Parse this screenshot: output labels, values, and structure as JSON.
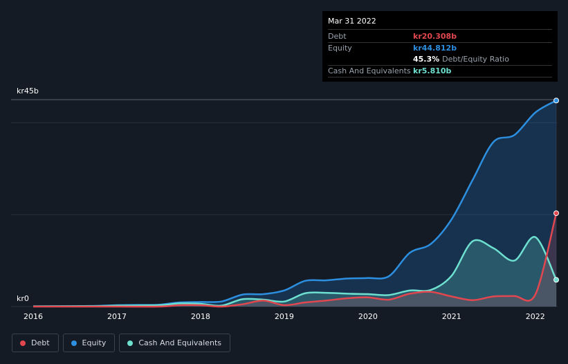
{
  "tooltip": {
    "date": "Mar 31 2022",
    "debt_label": "Debt",
    "debt_value": "kr20.308b",
    "equity_label": "Equity",
    "equity_value": "kr44.812b",
    "ratio_value": "45.3%",
    "ratio_label": "Debt/Equity Ratio",
    "cash_label": "Cash And Equivalents",
    "cash_value": "kr5.810b"
  },
  "legend": [
    {
      "label": "Debt",
      "color": "#e2474f"
    },
    {
      "label": "Equity",
      "color": "#2d8fe0"
    },
    {
      "label": "Cash And Equivalents",
      "color": "#6ee0d0"
    }
  ],
  "chart_data": {
    "type": "area",
    "title": "",
    "xlabel": "",
    "ylabel": "",
    "y_top_label": "kr45b",
    "y_bottom_label": "kr0",
    "ylim": [
      0,
      45
    ],
    "xlim": [
      2016.0,
      2022.25
    ],
    "x_ticks": [
      "2016",
      "2017",
      "2018",
      "2019",
      "2020",
      "2021",
      "2022"
    ],
    "series": [
      {
        "name": "Equity",
        "color": "#2d8fe0",
        "points": [
          [
            2016.0,
            0.05
          ],
          [
            2016.5,
            0.1
          ],
          [
            2016.75,
            0.15
          ],
          [
            2017.0,
            0.3
          ],
          [
            2017.25,
            0.35
          ],
          [
            2017.5,
            0.4
          ],
          [
            2017.75,
            0.9
          ],
          [
            2018.0,
            1.0
          ],
          [
            2018.25,
            1.1
          ],
          [
            2018.5,
            2.6
          ],
          [
            2018.75,
            2.7
          ],
          [
            2019.0,
            3.5
          ],
          [
            2019.25,
            5.6
          ],
          [
            2019.5,
            5.7
          ],
          [
            2019.75,
            6.1
          ],
          [
            2020.0,
            6.2
          ],
          [
            2020.25,
            6.6
          ],
          [
            2020.5,
            11.7
          ],
          [
            2020.75,
            13.6
          ],
          [
            2021.0,
            19.0
          ],
          [
            2021.25,
            27.5
          ],
          [
            2021.5,
            35.8
          ],
          [
            2021.75,
            37.3
          ],
          [
            2022.0,
            42.2
          ],
          [
            2022.25,
            44.812
          ]
        ]
      },
      {
        "name": "Debt",
        "color": "#e2474f",
        "points": [
          [
            2016.0,
            0.0
          ],
          [
            2017.0,
            0.0
          ],
          [
            2017.5,
            0.0
          ],
          [
            2017.75,
            0.3
          ],
          [
            2018.0,
            0.3
          ],
          [
            2018.25,
            0.0
          ],
          [
            2018.5,
            0.5
          ],
          [
            2018.75,
            1.3
          ],
          [
            2019.0,
            0.3
          ],
          [
            2019.25,
            0.9
          ],
          [
            2019.5,
            1.3
          ],
          [
            2019.75,
            1.8
          ],
          [
            2020.0,
            2.0
          ],
          [
            2020.25,
            1.5
          ],
          [
            2020.5,
            2.8
          ],
          [
            2020.75,
            3.2
          ],
          [
            2021.0,
            2.2
          ],
          [
            2021.25,
            1.4
          ],
          [
            2021.5,
            2.2
          ],
          [
            2021.75,
            2.3
          ],
          [
            2022.0,
            2.6
          ],
          [
            2022.25,
            20.308
          ]
        ]
      },
      {
        "name": "Cash And Equivalents",
        "color": "#6ee0d0",
        "points": [
          [
            2016.0,
            0.05
          ],
          [
            2016.75,
            0.1
          ],
          [
            2017.0,
            0.2
          ],
          [
            2017.5,
            0.3
          ],
          [
            2017.75,
            0.7
          ],
          [
            2018.0,
            0.6
          ],
          [
            2018.25,
            0.2
          ],
          [
            2018.5,
            1.6
          ],
          [
            2018.75,
            1.5
          ],
          [
            2019.0,
            1.1
          ],
          [
            2019.25,
            2.9
          ],
          [
            2019.5,
            3.0
          ],
          [
            2019.75,
            2.8
          ],
          [
            2020.0,
            2.7
          ],
          [
            2020.25,
            2.5
          ],
          [
            2020.5,
            3.5
          ],
          [
            2020.75,
            3.6
          ],
          [
            2021.0,
            6.7
          ],
          [
            2021.25,
            14.2
          ],
          [
            2021.5,
            12.7
          ],
          [
            2021.75,
            10.0
          ],
          [
            2022.0,
            15.1
          ],
          [
            2022.25,
            5.81
          ]
        ]
      }
    ]
  }
}
